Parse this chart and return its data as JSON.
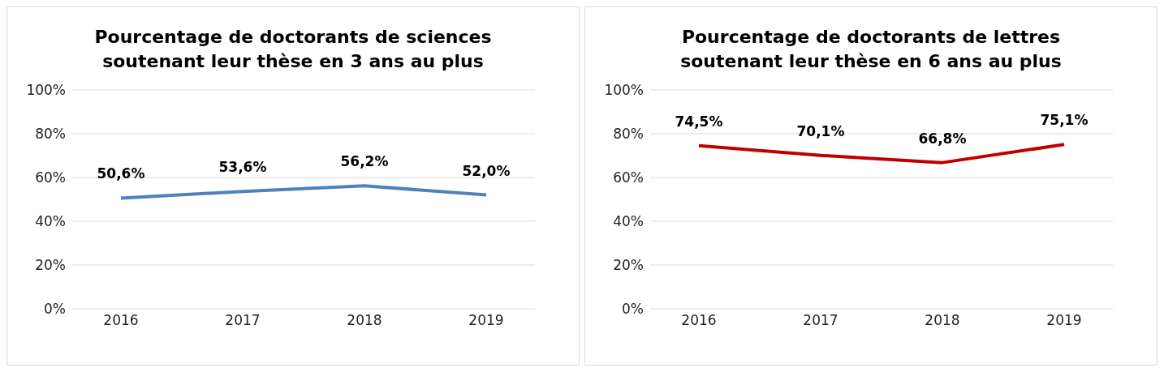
{
  "chart_data": [
    {
      "type": "line",
      "title": "Pourcentage de doctorants de sciences soutenant leur thèse en 3 ans au plus",
      "categories": [
        "2016",
        "2017",
        "2018",
        "2019"
      ],
      "series": [
        {
          "color": "#4f81bd",
          "values": [
            50.6,
            53.6,
            56.2,
            52.0
          ],
          "value_labels": [
            "50,6%",
            "53,6%",
            "56,2%",
            "52,0%"
          ]
        }
      ],
      "ylim": [
        0,
        100
      ],
      "yticks": [
        {
          "value": 0,
          "label": "0%"
        },
        {
          "value": 20,
          "label": "20%"
        },
        {
          "value": 40,
          "label": "40%"
        },
        {
          "value": 60,
          "label": "60%"
        },
        {
          "value": 80,
          "label": "80%"
        },
        {
          "value": 100,
          "label": "100%"
        }
      ],
      "grid": "y",
      "marker": "none"
    },
    {
      "type": "line",
      "title": "Pourcentage de doctorants de lettres soutenant leur thèse en 6 ans au plus",
      "categories": [
        "2016",
        "2017",
        "2018",
        "2019"
      ],
      "series": [
        {
          "color": "#c00000",
          "values": [
            74.5,
            70.1,
            66.8,
            75.1
          ],
          "value_labels": [
            "74,5%",
            "70,1%",
            "66,8%",
            "75,1%"
          ]
        }
      ],
      "ylim": [
        0,
        100
      ],
      "yticks": [
        {
          "value": 0,
          "label": "0%"
        },
        {
          "value": 20,
          "label": "20%"
        },
        {
          "value": 40,
          "label": "40%"
        },
        {
          "value": 60,
          "label": "60%"
        },
        {
          "value": 80,
          "label": "80%"
        },
        {
          "value": 100,
          "label": "100%"
        }
      ],
      "grid": "y",
      "marker": "none"
    }
  ]
}
